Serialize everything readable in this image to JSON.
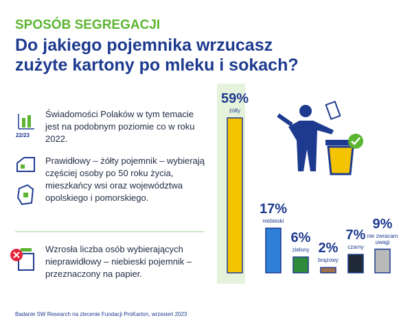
{
  "header": {
    "kicker": "SPOSÓB SEGREGACJI",
    "title_lines": [
      "Do jakiego pojemnika wrzucasz",
      "zużyte kartony po mleku i sokach?"
    ]
  },
  "icon_label": "22/23",
  "notes": [
    "Świadomości Polaków w tym temacie jest na podobnym poziomie co w roku 2022.",
    "Prawidłowy – żółty pojemnik – wybierają częściej osoby po 50 roku życia, mieszkańcy wsi oraz województwa opolskiego i pomorskiego.",
    "Wzrosła liczba osób wybierających nieprawidłowy – niebieski pojemnik – przeznaczony na papier."
  ],
  "source": "Badanie SW Research na zlecenie Fundacji ProKarton, wrzesień 2023",
  "chart_data": {
    "type": "bar",
    "categories": [
      "żółty",
      "niebieski",
      "zielony",
      "brązowy",
      "czarny",
      "nie zwracam uwagi"
    ],
    "values": [
      59,
      17,
      6,
      2,
      7,
      9
    ],
    "value_labels": [
      "59%",
      "17%",
      "6%",
      "2%",
      "7%",
      "9%"
    ],
    "colors": [
      "#f5c400",
      "#2e7fd8",
      "#2e8b3a",
      "#a0714a",
      "#1f2a36",
      "#b9b9b9"
    ],
    "highlight": 0
  }
}
